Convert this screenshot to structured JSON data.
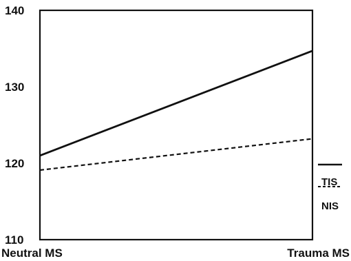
{
  "chart_data": {
    "type": "line",
    "categories": [
      "Neutral MS",
      "Trauma MS"
    ],
    "ylim": [
      110,
      140
    ],
    "yticks": [
      110,
      120,
      130,
      140
    ],
    "grid": false,
    "legend_position": "right",
    "series": [
      {
        "name": "TIS",
        "values": [
          121,
          134.7
        ],
        "color": "#111111",
        "line_style": "solid"
      },
      {
        "name": "NIS",
        "values": [
          119.1,
          123.2
        ],
        "color": "#111111",
        "line_style": "dashed"
      }
    ]
  }
}
